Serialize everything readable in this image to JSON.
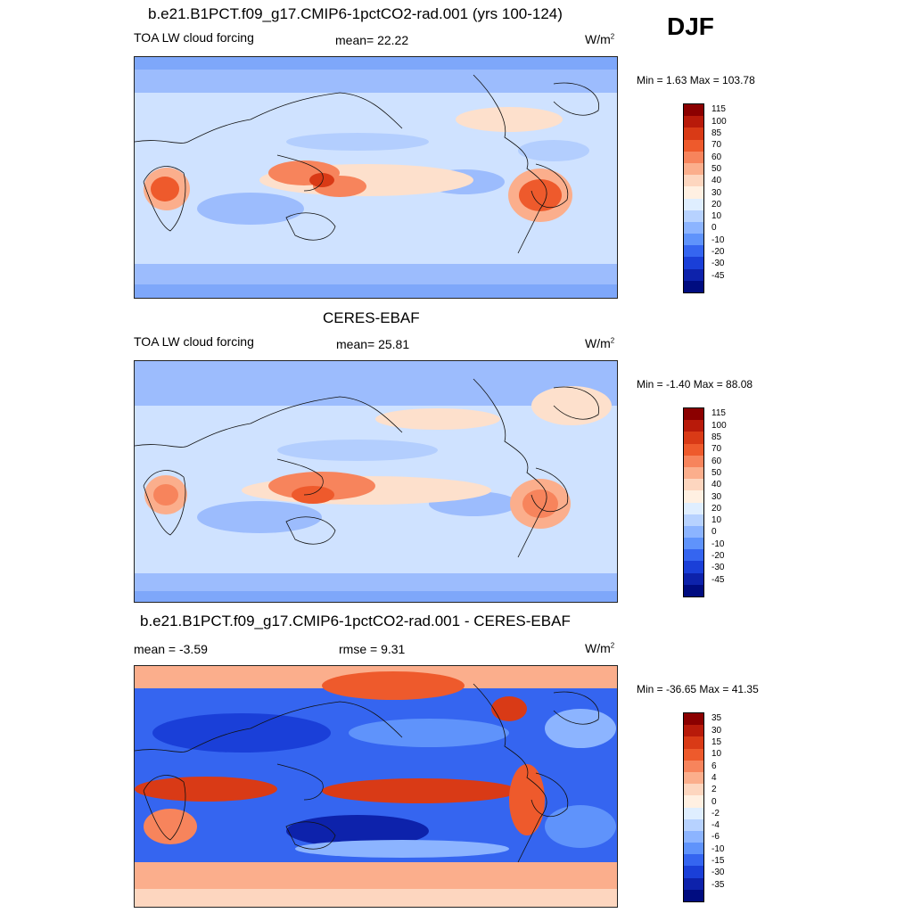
{
  "season": "DJF",
  "panels": [
    {
      "title": "b.e21.B1PCT.f09_g17.CMIP6-1pctCO2-rad.001 (yrs 100-124)",
      "left_label": "TOA LW cloud forcing",
      "center_label": "mean=  22.22",
      "units": "W/m",
      "units_sup": "2",
      "minmax": "Min =   1.63 Max = 103.78",
      "colorbar": {
        "labels": [
          "115",
          "100",
          "85",
          "70",
          "60",
          "50",
          "40",
          "30",
          "20",
          "10",
          "0",
          "-10",
          "-20",
          "-30",
          "-45"
        ],
        "colors": [
          "#8b0000",
          "#b81a0a",
          "#d93a16",
          "#ee5a2c",
          "#f7845c",
          "#fbae8c",
          "#fdd6bf",
          "#fff0e2",
          "#dfeeff",
          "#b7d2ff",
          "#8cb4ff",
          "#5f93fb",
          "#3565f0",
          "#1a3fd8",
          "#0d22ab",
          "#000c80"
        ]
      }
    },
    {
      "title": "CERES-EBAF",
      "left_label": "TOA LW cloud forcing",
      "center_label": "mean=  25.81",
      "units": "W/m",
      "units_sup": "2",
      "minmax": "Min =  -1.40 Max =  88.08",
      "colorbar": {
        "labels": [
          "115",
          "100",
          "85",
          "70",
          "60",
          "50",
          "40",
          "30",
          "20",
          "10",
          "0",
          "-10",
          "-20",
          "-30",
          "-45"
        ],
        "colors": [
          "#8b0000",
          "#b81a0a",
          "#d93a16",
          "#ee5a2c",
          "#f7845c",
          "#fbae8c",
          "#fdd6bf",
          "#fff0e2",
          "#dfeeff",
          "#b7d2ff",
          "#8cb4ff",
          "#5f93fb",
          "#3565f0",
          "#1a3fd8",
          "#0d22ab",
          "#000c80"
        ]
      }
    },
    {
      "title": "b.e21.B1PCT.f09_g17.CMIP6-1pctCO2-rad.001 - CERES-EBAF",
      "left_label": "mean =  -3.59",
      "center_label": "rmse =   9.31",
      "units": "W/m",
      "units_sup": "2",
      "minmax": "Min = -36.65 Max =  41.35",
      "colorbar": {
        "labels": [
          "35",
          "30",
          "15",
          "10",
          "6",
          "4",
          "2",
          "0",
          "-2",
          "-4",
          "-6",
          "-10",
          "-15",
          "-30",
          "-35"
        ],
        "colors": [
          "#8b0000",
          "#b81a0a",
          "#d93a16",
          "#ee5a2c",
          "#f7845c",
          "#fbae8c",
          "#fdd6bf",
          "#fff0e2",
          "#dfeeff",
          "#b7d2ff",
          "#8cb4ff",
          "#5f93fb",
          "#3565f0",
          "#1a3fd8",
          "#0d22ab",
          "#000c80"
        ]
      }
    }
  ]
}
